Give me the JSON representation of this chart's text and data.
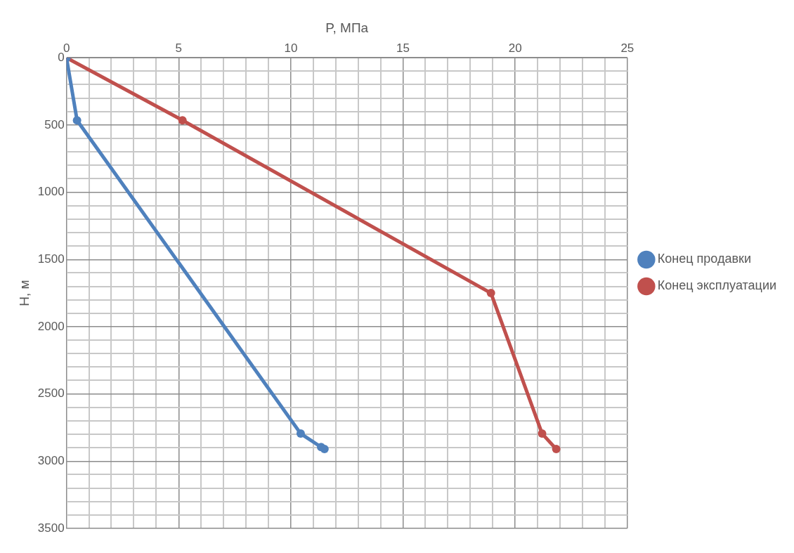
{
  "chart_data": {
    "type": "line",
    "xlabel": "P, МПа",
    "ylabel": "H, м",
    "xlim": [
      0,
      25
    ],
    "ylim": [
      3500,
      0
    ],
    "xticks": [
      0,
      {
        "value": 1,
        "label": null
      },
      {
        "value": 2,
        "label": null
      },
      {
        "value": 3,
        "label": null
      },
      {
        "value": 4,
        "label": null
      },
      5,
      {
        "value": 6,
        "label": null
      },
      {
        "value": 7,
        "label": null
      },
      {
        "value": 8,
        "label": null
      },
      {
        "value": 9,
        "label": null
      },
      10,
      {
        "value": 11,
        "label": null
      },
      {
        "value": 12,
        "label": null
      },
      {
        "value": 13,
        "label": null
      },
      {
        "value": 14,
        "label": null
      },
      15,
      {
        "value": 16,
        "label": null
      },
      {
        "value": 17,
        "label": null
      },
      {
        "value": 18,
        "label": null
      },
      {
        "value": 19,
        "label": null
      },
      20,
      {
        "value": 21,
        "label": null
      },
      {
        "value": 22,
        "label": null
      },
      {
        "value": 23,
        "label": null
      },
      {
        "value": 24,
        "label": null
      },
      25
    ],
    "yticks": [
      0,
      {
        "value": 100,
        "label": null
      },
      {
        "value": 200,
        "label": null
      },
      {
        "value": 300,
        "label": null
      },
      {
        "value": 400,
        "label": null
      },
      500,
      {
        "value": 600,
        "label": null
      },
      {
        "value": 700,
        "label": null
      },
      {
        "value": 800,
        "label": null
      },
      {
        "value": 900,
        "label": null
      },
      1000,
      {
        "value": 1100,
        "label": null
      },
      {
        "value": 1200,
        "label": null
      },
      {
        "value": 1300,
        "label": null
      },
      {
        "value": 1400,
        "label": null
      },
      1500,
      {
        "value": 1600,
        "label": null
      },
      {
        "value": 1700,
        "label": null
      },
      {
        "value": 1800,
        "label": null
      },
      {
        "value": 1900,
        "label": null
      },
      2000,
      {
        "value": 2100,
        "label": null
      },
      {
        "value": 2200,
        "label": null
      },
      {
        "value": 2300,
        "label": null
      },
      {
        "value": 2400,
        "label": null
      },
      2500,
      {
        "value": 2600,
        "label": null
      },
      {
        "value": 2700,
        "label": null
      },
      {
        "value": 2800,
        "label": null
      },
      {
        "value": 2900,
        "label": null
      },
      3000,
      {
        "value": 3100,
        "label": null
      },
      {
        "value": 3200,
        "label": null
      },
      {
        "value": 3300,
        "label": null
      },
      {
        "value": 3400,
        "label": null
      },
      3500
    ],
    "grid": true,
    "legend": "right",
    "marker": "circle",
    "line_style": "solid",
    "series": [
      {
        "name": "Конец продавки",
        "color": "#4f81bd",
        "x": [
          0,
          0.47,
          10.44,
          11.35,
          11.5
        ],
        "values": [
          0,
          465,
          2795,
          2895,
          2910
        ]
      },
      {
        "name": "Конец эксплуатации",
        "color": "#c0504d",
        "x": [
          0,
          5.17,
          18.92,
          21.2,
          21.83
        ],
        "values": [
          0,
          465,
          1750,
          2795,
          2910
        ]
      }
    ]
  }
}
